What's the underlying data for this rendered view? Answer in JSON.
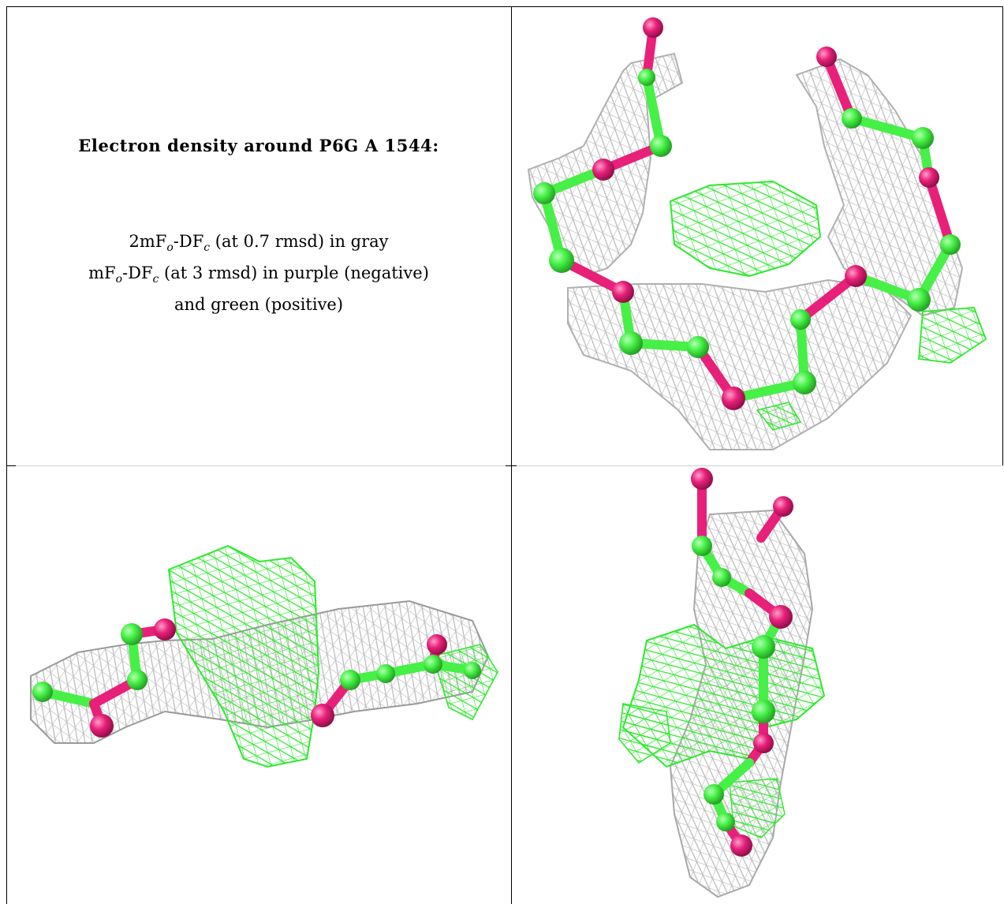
{
  "caption": {
    "title": "Electron density around P6G A 1544:",
    "line1": {
      "pre": "2mF",
      "sub1": "o",
      "mid": "-DF",
      "sub2": "c",
      "post": " (at 0.7 rmsd) in gray"
    },
    "line2": {
      "pre": "mF",
      "sub1": "o",
      "mid": "-DF",
      "sub2": "c",
      "post": " (at 3 rmsd) in purple (negative)"
    },
    "line3": "and green (positive)"
  },
  "colors": {
    "mesh_2fofc": "#b8b8b8",
    "mesh_positive": "#2ee82e",
    "carbon": "#46f046",
    "oxygen": "#e8207a",
    "frame": "#000000"
  }
}
